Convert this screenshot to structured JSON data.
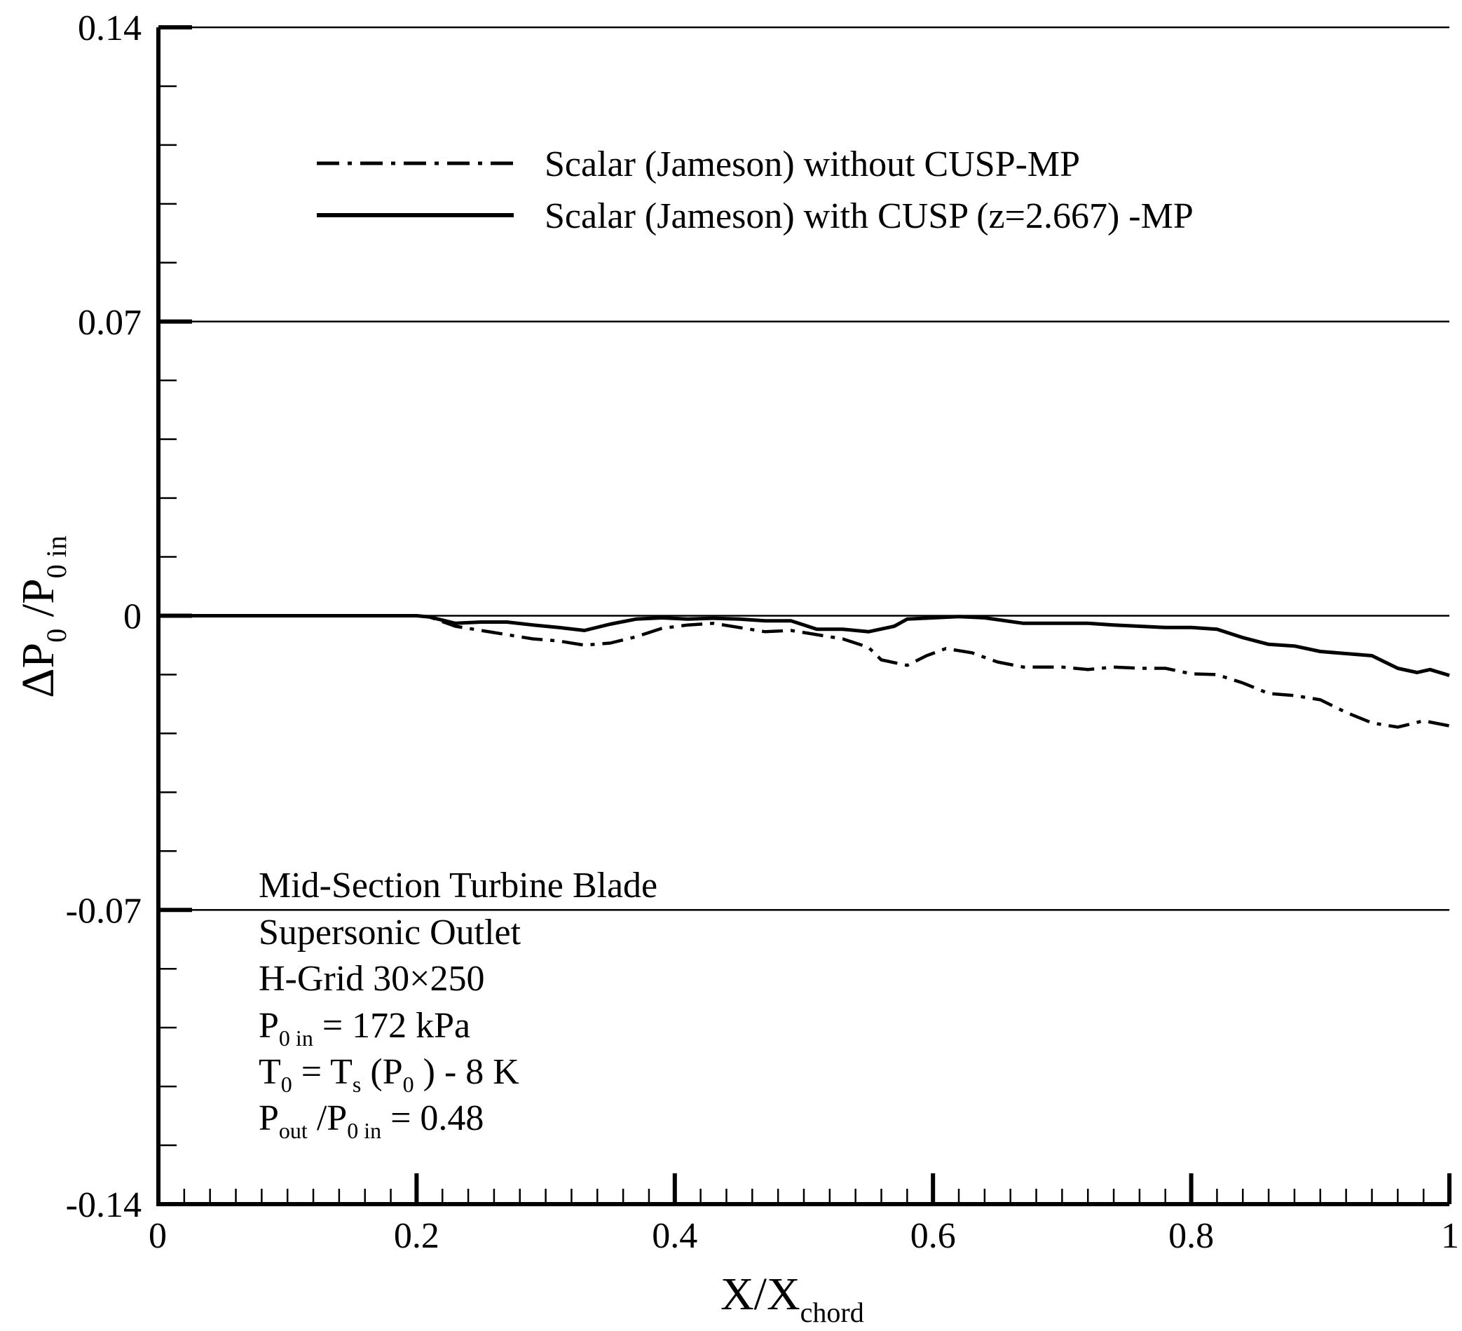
{
  "chart_data": {
    "type": "line",
    "xlim": [
      0,
      1
    ],
    "ylim": [
      -0.14,
      0.14
    ],
    "x_ticks": [
      "0",
      "0.2",
      "0.4",
      "0.6",
      "0.8",
      "1"
    ],
    "y_ticks": [
      "-0.14",
      "-0.07",
      "0",
      "0.07",
      "0.14"
    ],
    "x_tick_values": [
      0,
      0.2,
      0.4,
      0.6,
      0.8,
      1
    ],
    "y_tick_values": [
      -0.14,
      -0.07,
      0,
      0.07,
      0.14
    ],
    "grid": "horizontal at major y ticks",
    "xlabel": {
      "main": "X/X",
      "sub": "chord"
    },
    "ylabel": {
      "delta": "ΔP",
      "sub1": "0",
      "slash": " /P",
      "sub2": "0 in"
    },
    "legend_position": "top-center",
    "series": [
      {
        "name": "Scalar (Jameson) without CUSP-MP",
        "style": "dash-dot",
        "points": [
          [
            0,
            0
          ],
          [
            0.2,
            0
          ],
          [
            0.21,
            -0.0003
          ],
          [
            0.23,
            -0.0025
          ],
          [
            0.26,
            -0.004
          ],
          [
            0.29,
            -0.0055
          ],
          [
            0.31,
            -0.006
          ],
          [
            0.33,
            -0.007
          ],
          [
            0.35,
            -0.0065
          ],
          [
            0.37,
            -0.005
          ],
          [
            0.39,
            -0.003
          ],
          [
            0.41,
            -0.0022
          ],
          [
            0.43,
            -0.0018
          ],
          [
            0.45,
            -0.0028
          ],
          [
            0.47,
            -0.0038
          ],
          [
            0.49,
            -0.0035
          ],
          [
            0.51,
            -0.0045
          ],
          [
            0.53,
            -0.0055
          ],
          [
            0.55,
            -0.0075
          ],
          [
            0.56,
            -0.0105
          ],
          [
            0.58,
            -0.0118
          ],
          [
            0.595,
            -0.0095
          ],
          [
            0.61,
            -0.0078
          ],
          [
            0.63,
            -0.0088
          ],
          [
            0.65,
            -0.011
          ],
          [
            0.67,
            -0.0122
          ],
          [
            0.7,
            -0.0122
          ],
          [
            0.72,
            -0.0128
          ],
          [
            0.74,
            -0.0122
          ],
          [
            0.76,
            -0.0125
          ],
          [
            0.78,
            -0.0125
          ],
          [
            0.8,
            -0.0138
          ],
          [
            0.82,
            -0.014
          ],
          [
            0.84,
            -0.016
          ],
          [
            0.86,
            -0.0185
          ],
          [
            0.88,
            -0.019
          ],
          [
            0.9,
            -0.02
          ],
          [
            0.92,
            -0.023
          ],
          [
            0.94,
            -0.0255
          ],
          [
            0.96,
            -0.0265
          ],
          [
            0.98,
            -0.025
          ],
          [
            1.0,
            -0.0262
          ]
        ]
      },
      {
        "name": "Scalar (Jameson) with CUSP (z=2.667) -MP",
        "style": "solid",
        "points": [
          [
            0,
            0
          ],
          [
            0.2,
            0
          ],
          [
            0.21,
            -0.0003
          ],
          [
            0.23,
            -0.0018
          ],
          [
            0.25,
            -0.0015
          ],
          [
            0.27,
            -0.0015
          ],
          [
            0.29,
            -0.0022
          ],
          [
            0.31,
            -0.0028
          ],
          [
            0.33,
            -0.0035
          ],
          [
            0.35,
            -0.002
          ],
          [
            0.37,
            -0.0008
          ],
          [
            0.39,
            -0.0005
          ],
          [
            0.41,
            -0.0008
          ],
          [
            0.43,
            -0.0006
          ],
          [
            0.45,
            -0.0008
          ],
          [
            0.47,
            -0.0012
          ],
          [
            0.49,
            -0.0012
          ],
          [
            0.51,
            -0.0032
          ],
          [
            0.53,
            -0.0032
          ],
          [
            0.55,
            -0.0038
          ],
          [
            0.57,
            -0.0025
          ],
          [
            0.58,
            -0.0008
          ],
          [
            0.6,
            -0.0005
          ],
          [
            0.62,
            -0.0002
          ],
          [
            0.64,
            -0.0005
          ],
          [
            0.67,
            -0.0018
          ],
          [
            0.7,
            -0.0018
          ],
          [
            0.72,
            -0.0018
          ],
          [
            0.74,
            -0.0022
          ],
          [
            0.76,
            -0.0025
          ],
          [
            0.78,
            -0.0028
          ],
          [
            0.8,
            -0.0028
          ],
          [
            0.82,
            -0.0032
          ],
          [
            0.84,
            -0.0052
          ],
          [
            0.86,
            -0.0068
          ],
          [
            0.88,
            -0.0072
          ],
          [
            0.9,
            -0.0085
          ],
          [
            0.92,
            -0.009
          ],
          [
            0.94,
            -0.0095
          ],
          [
            0.96,
            -0.0125
          ],
          [
            0.975,
            -0.0135
          ],
          [
            0.985,
            -0.0128
          ],
          [
            1.0,
            -0.0142
          ]
        ]
      }
    ],
    "annotations": {
      "line1": "Mid-Section Turbine Blade",
      "line2": "Supersonic Outlet",
      "line3": "H-Grid 30×250",
      "line4": {
        "a": "P",
        "sub": "0 in",
        "b": " = 172 kPa"
      },
      "line5": {
        "a": "T",
        "sub1": "0",
        "b": " = T",
        "sub2": "s",
        "c": " (P",
        "sub3": "0",
        "d": " ) - 8 K"
      },
      "line6": {
        "a": "P",
        "sub1": "out",
        "b": " /P",
        "sub2": "0 in",
        "c": " = 0.48"
      }
    }
  }
}
